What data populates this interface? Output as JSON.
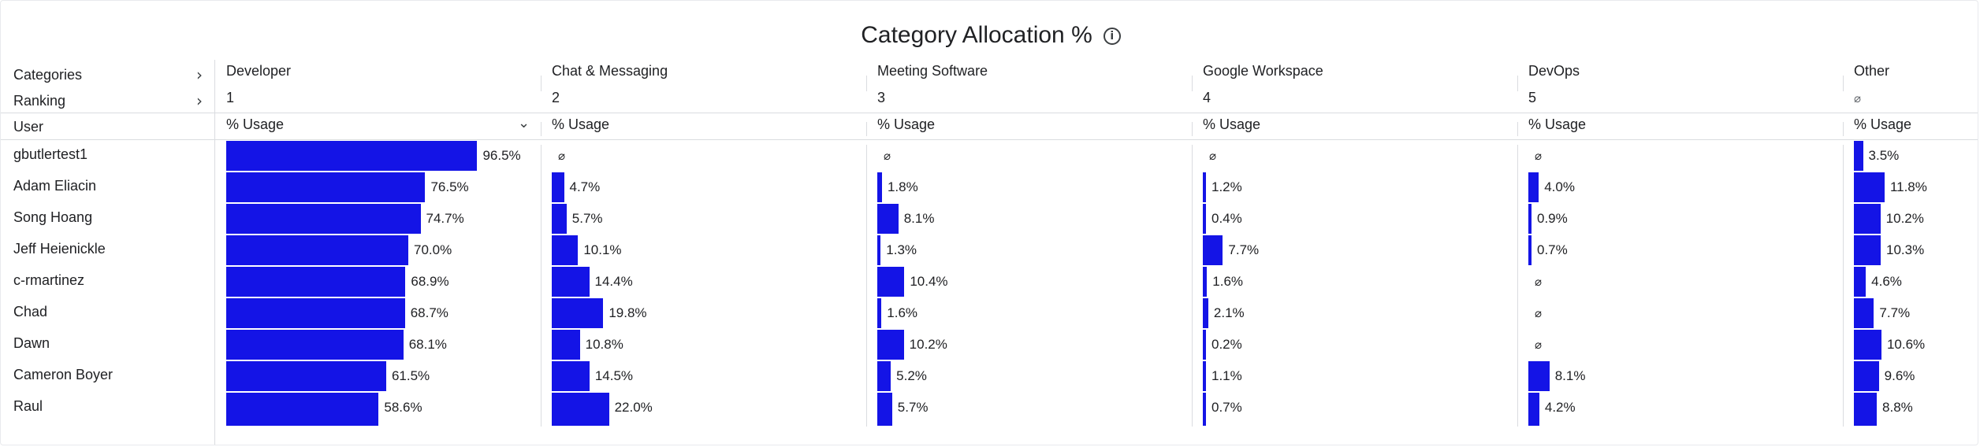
{
  "title": "Category Allocation %",
  "left_labels": {
    "categories": "Categories",
    "ranking": "Ranking",
    "user": "User"
  },
  "null_symbol": "⌀",
  "metric_label": "% Usage",
  "colors": {
    "bar": "#1414e6",
    "grid": "#dadce0",
    "text": "#202124"
  },
  "users": [
    "gbutlertest1",
    "Adam Eliacin",
    "Song Hoang",
    "Jeff Heienickle",
    "c-rmartinez",
    "Chad",
    "Dawn",
    "Cameron Boyer",
    "Raul"
  ],
  "columns": [
    {
      "name": "Developer",
      "rank": "1",
      "values": [
        96.5,
        76.5,
        74.7,
        70.0,
        68.9,
        68.7,
        68.1,
        61.5,
        58.6
      ],
      "labels": [
        "96.5%",
        "76.5%",
        "74.7%",
        "70.0%",
        "68.9%",
        "68.7%",
        "68.1%",
        "61.5%",
        "58.6%"
      ],
      "sorted": true
    },
    {
      "name": "Chat & Messaging",
      "rank": "2",
      "values": [
        null,
        4.7,
        5.7,
        10.1,
        14.4,
        19.8,
        10.8,
        14.5,
        22.0
      ],
      "labels": [
        null,
        "4.7%",
        "5.7%",
        "10.1%",
        "14.4%",
        "19.8%",
        "10.8%",
        "14.5%",
        "22.0%"
      ]
    },
    {
      "name": "Meeting Software",
      "rank": "3",
      "values": [
        null,
        1.8,
        8.1,
        1.3,
        10.4,
        1.6,
        10.2,
        5.2,
        5.7
      ],
      "labels": [
        null,
        "1.8%",
        "8.1%",
        "1.3%",
        "10.4%",
        "1.6%",
        "10.2%",
        "5.2%",
        "5.7%"
      ]
    },
    {
      "name": "Google Workspace",
      "rank": "4",
      "values": [
        null,
        1.2,
        0.4,
        7.7,
        1.6,
        2.1,
        0.2,
        1.1,
        0.7
      ],
      "labels": [
        null,
        "1.2%",
        "0.4%",
        "7.7%",
        "1.6%",
        "2.1%",
        "0.2%",
        "1.1%",
        "0.7%"
      ]
    },
    {
      "name": "DevOps",
      "rank": "5",
      "values": [
        null,
        4.0,
        0.9,
        0.7,
        null,
        null,
        null,
        8.1,
        4.2
      ],
      "labels": [
        null,
        "4.0%",
        "0.9%",
        "0.7%",
        null,
        null,
        null,
        "8.1%",
        "4.2%"
      ]
    },
    {
      "name": "Other",
      "rank": null,
      "values": [
        3.5,
        11.8,
        10.2,
        10.3,
        4.6,
        7.7,
        10.6,
        9.6,
        8.8
      ],
      "labels": [
        "3.5%",
        "11.8%",
        "10.2%",
        "10.3%",
        "4.6%",
        "7.7%",
        "10.6%",
        "9.6%",
        "8.8%"
      ]
    }
  ]
}
